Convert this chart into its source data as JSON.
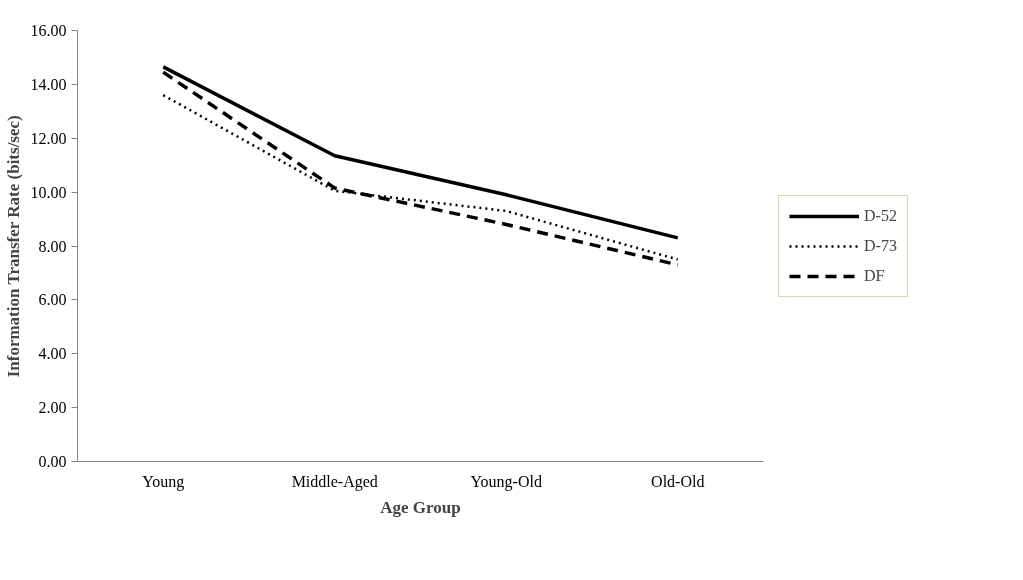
{
  "chart_data": {
    "type": "line",
    "xlabel": "Age Group",
    "ylabel": "Information Transfer Rate (bits/sec)",
    "categories": [
      "Young",
      "Middle-Aged",
      "Young-Old",
      "Old-Old"
    ],
    "series": [
      {
        "name": "D-52",
        "color": "#000000",
        "line_style": "solid",
        "values": [
          14.65,
          11.35,
          9.9,
          8.3
        ]
      },
      {
        "name": "D-73",
        "color": "#000000",
        "line_style": "dotted",
        "values": [
          13.6,
          10.05,
          9.3,
          7.5
        ]
      },
      {
        "name": "DF",
        "color": "#000000",
        "line_style": "dashed",
        "values": [
          14.45,
          10.15,
          8.8,
          7.3
        ]
      }
    ],
    "ylim": [
      0,
      16
    ],
    "yticks": [
      {
        "value": 0,
        "label": "0.00"
      },
      {
        "value": 2,
        "label": "2.00"
      },
      {
        "value": 4,
        "label": "4.00"
      },
      {
        "value": 6,
        "label": "6.00"
      },
      {
        "value": 8,
        "label": "8.00"
      },
      {
        "value": 10,
        "label": "10.00"
      },
      {
        "value": 12,
        "label": "12.00"
      },
      {
        "value": 14,
        "label": "14.00"
      },
      {
        "value": 16,
        "label": "16.00"
      }
    ],
    "grid": false,
    "legend": "right",
    "marker": "none"
  }
}
